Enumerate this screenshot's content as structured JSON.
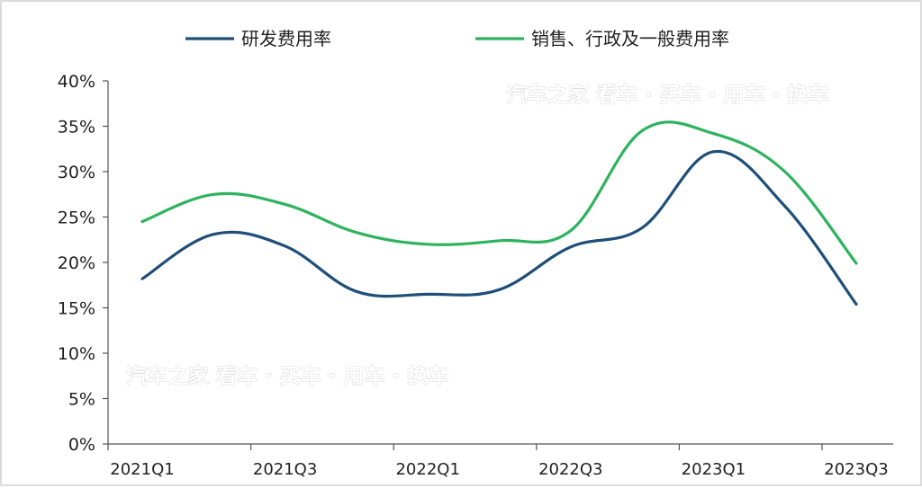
{
  "chart_data": {
    "type": "line",
    "categories": [
      "2021Q1",
      "2021Q2",
      "2021Q3",
      "2021Q4",
      "2022Q1",
      "2022Q2",
      "2022Q3",
      "2022Q4",
      "2023Q1",
      "2023Q2",
      "2023Q3"
    ],
    "x_tick_labels": [
      "2021Q1",
      "2021Q3",
      "2022Q1",
      "2022Q3",
      "2023Q1",
      "2023Q3"
    ],
    "y_tick_labels": [
      "0%",
      "5%",
      "10%",
      "15%",
      "20%",
      "25%",
      "30%",
      "35%",
      "40%"
    ],
    "ylim": [
      0,
      40
    ],
    "y_unit": "%",
    "legend_position": "top",
    "grid": false,
    "series": [
      {
        "name": "研发费用率",
        "color": "#1f4e79",
        "values": [
          18.2,
          23.1,
          21.8,
          16.8,
          16.5,
          17.0,
          21.7,
          23.8,
          32.2,
          26.2,
          15.4
        ]
      },
      {
        "name": "销售、行政及一般费用率",
        "color": "#2db35d",
        "values": [
          24.5,
          27.5,
          26.4,
          23.3,
          22.0,
          22.4,
          23.5,
          34.5,
          34.2,
          30.0,
          19.9
        ]
      }
    ]
  },
  "watermarks": [
    "汽车之家 看车 · 买车 · 用车 · 换车",
    "汽车之家 看车 · 买车 · 用车 · 换车"
  ]
}
